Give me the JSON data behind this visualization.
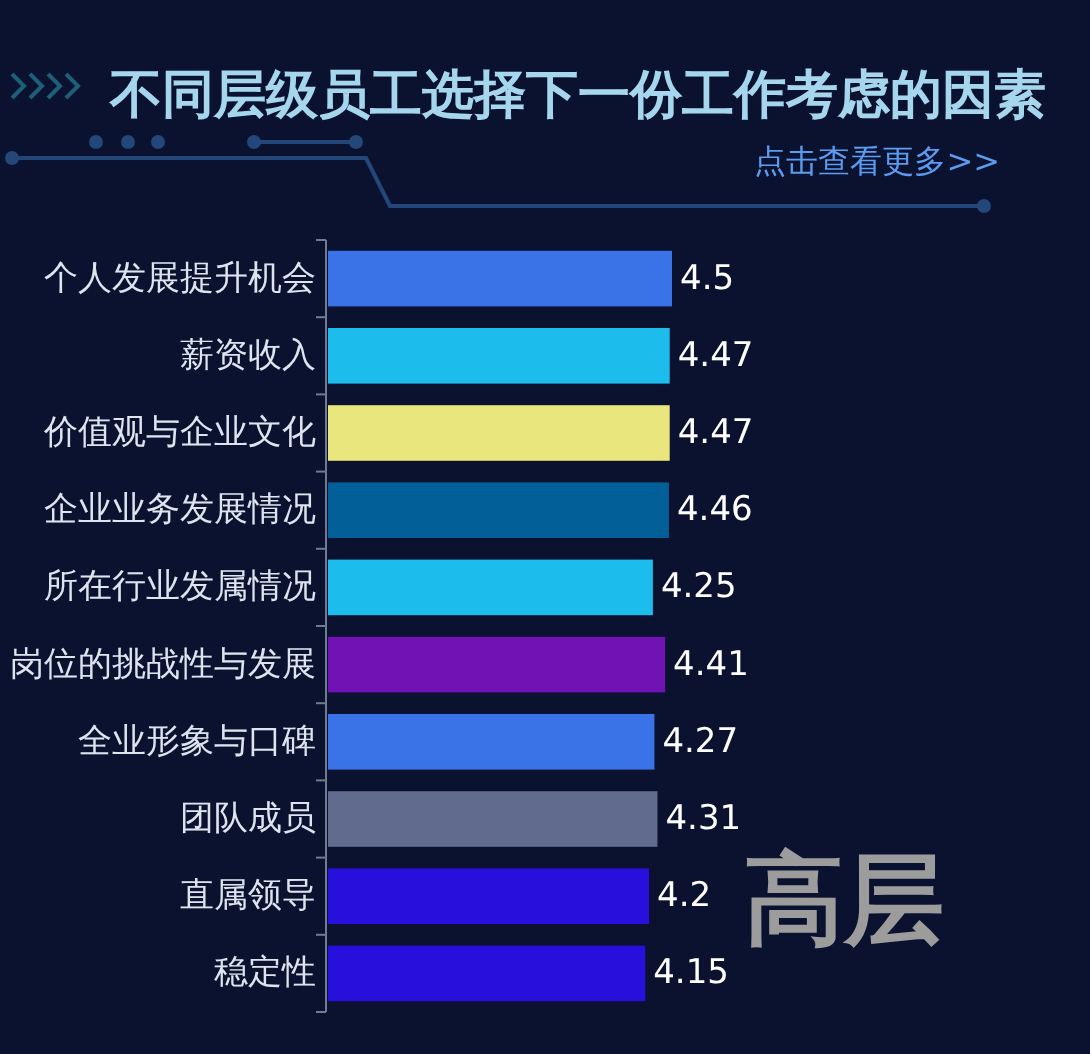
{
  "chart_data": {
    "type": "bar",
    "orientation": "horizontal",
    "title": "不同层级员工选择下一份工作考虑的因素",
    "subtitle": "点击查看更多>>",
    "categories": [
      "个人发展提升机会",
      "薪资收入",
      "价值观与企业文化",
      "企业业务发展情况",
      "所在行业发属情况",
      "岗位的挑战性与发展",
      "全业形象与口碑",
      "团队成员",
      "直属领导",
      "稳定性"
    ],
    "values": [
      4.5,
      4.47,
      4.47,
      4.46,
      4.25,
      4.41,
      4.27,
      4.31,
      4.2,
      4.15
    ],
    "colors": [
      "#3a72e8",
      "#1cbcec",
      "#e8e67c",
      "#035f98",
      "#1cbcec",
      "#7112b4",
      "#3a72e8",
      "#616b8e",
      "#2710dc",
      "#2710dc"
    ],
    "data_labels": true,
    "annotations": [
      "高层"
    ]
  }
}
